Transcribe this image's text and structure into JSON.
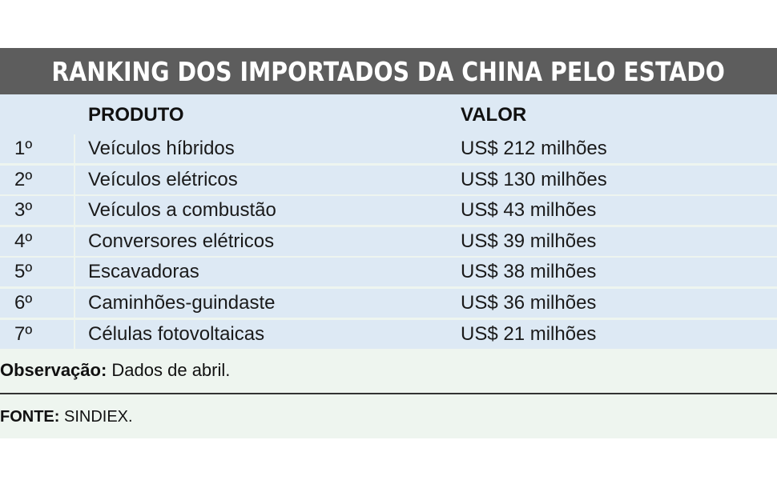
{
  "title": "RANKING DOS IMPORTADOS DA CHINA PELO ESTADO",
  "headers": {
    "produto": "PRODUTO",
    "valor": "VALOR"
  },
  "rows": [
    {
      "rank": "1º",
      "produto": "Veículos híbridos",
      "valor": "US$ 212 milhões"
    },
    {
      "rank": "2º",
      "produto": "Veículos elétricos",
      "valor": "US$ 130 milhões"
    },
    {
      "rank": "3º",
      "produto": "Veículos a combustão",
      "valor": "US$ 43 milhões"
    },
    {
      "rank": "4º",
      "produto": "Conversores elétricos",
      "valor": "US$ 39 milhões"
    },
    {
      "rank": "5º",
      "produto": "Escavadoras",
      "valor": "US$ 38 milhões"
    },
    {
      "rank": "6º",
      "produto": "Caminhões-guindaste",
      "valor": "US$ 36 milhões"
    },
    {
      "rank": "7º",
      "produto": "Células fotovoltaicas",
      "valor": "US$ 21 milhões"
    }
  ],
  "note": {
    "label": "Observação:",
    "text": " Dados de abril."
  },
  "source": {
    "label": "FONTE:",
    "text": " SINDIEX."
  },
  "colors": {
    "title_bg": "#5d5d5d",
    "row_bg": "#dde9f4",
    "panel_bg": "#eef5ef"
  }
}
